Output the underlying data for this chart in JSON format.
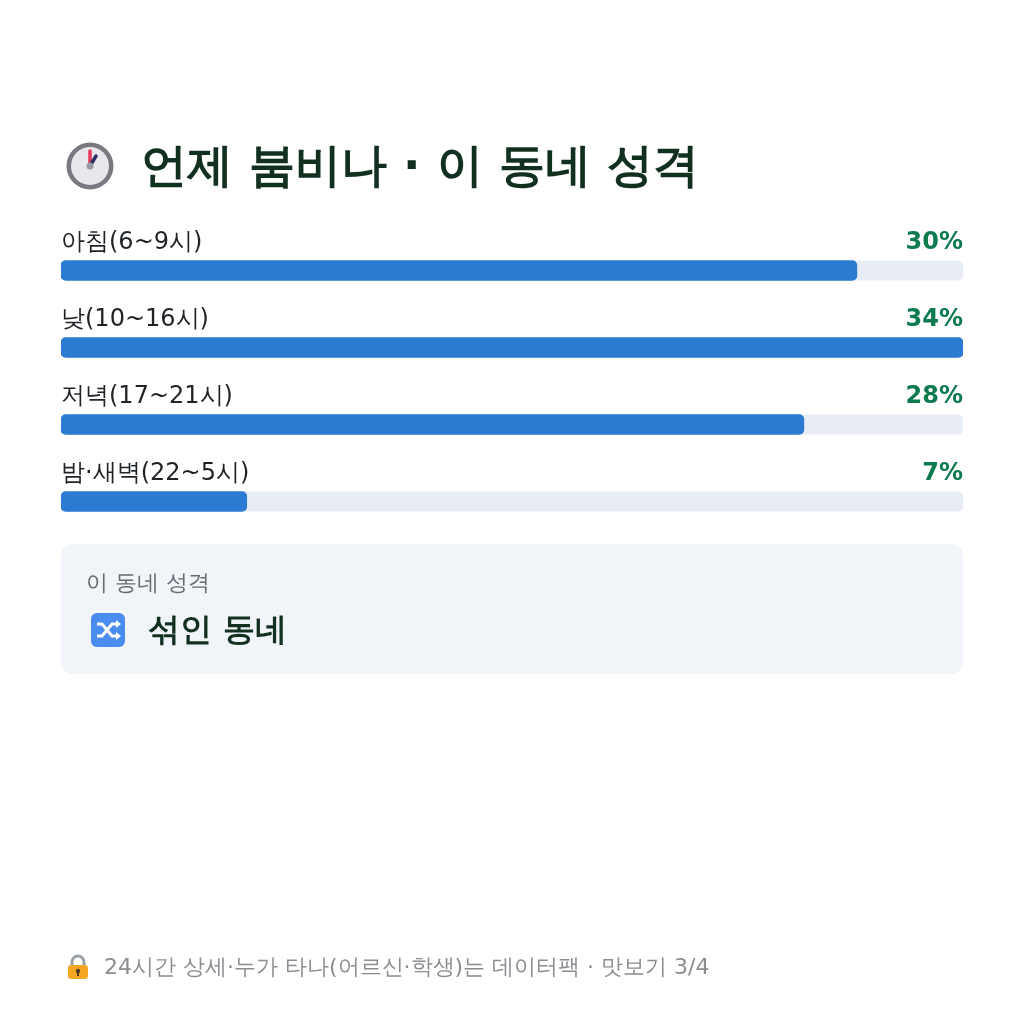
{
  "chart_data": [
    {
      "type": "bar",
      "title": "언제 붐비나 · 이 동네 성격",
      "orientation": "horizontal",
      "categories": [
        "아침(6~9시)",
        "낮(10~16시)",
        "저녁(17~21시)",
        "밤·새벽(22~5시)"
      ],
      "values": [
        30,
        34,
        28,
        7
      ],
      "value_labels": [
        "30%",
        "34%",
        "28%",
        "7%"
      ],
      "color": "#2b7bd3",
      "annotations": [
        "24시간 상세·누가 타나(어르신·학생)는 데이터팩 · 맛보기 3/4"
      ]
    },
    {
      "type": "other",
      "title": "이 동네 성격",
      "annotations": [
        "섞인 동네"
      ]
    }
  ]
}
